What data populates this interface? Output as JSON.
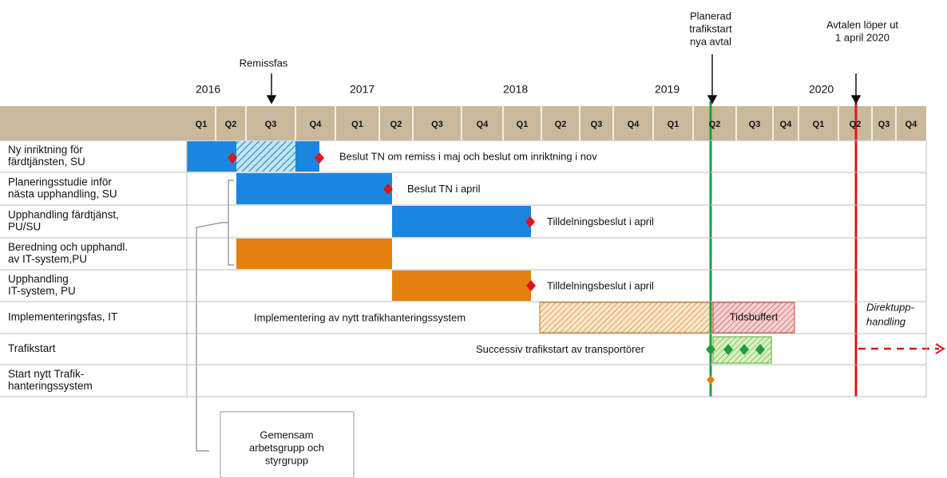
{
  "years": [
    "2016",
    "2017",
    "2018",
    "2019",
    "2020"
  ],
  "quarters": [
    "Q1",
    "Q2",
    "Q3",
    "Q4",
    "Q1",
    "Q2",
    "Q3",
    "Q4",
    "Q1",
    "Q2",
    "Q3",
    "Q4",
    "Q1",
    "Q2",
    "Q3",
    "Q4",
    "Q1",
    "Q2",
    "Q3",
    "Q4"
  ],
  "rows": [
    {
      "label": [
        "Ny inriktning för",
        "färdtjänsten,  SU"
      ],
      "note": "Beslut TN om remiss i maj och beslut om inriktning i nov"
    },
    {
      "label": [
        "Planeringsstudie inför",
        "nästa upphandling,  SU"
      ],
      "note": "Beslut TN i april"
    },
    {
      "label": [
        "Upphandling färdtjänst,",
        "PU/SU"
      ],
      "note": "Tilldelningsbeslut i april"
    },
    {
      "label": [
        "Beredning och upphandl.",
        "av IT-system,PU"
      ]
    },
    {
      "label": [
        "Upphandling",
        "IT-system,  PU"
      ],
      "note": "Tilldelningsbeslut i april"
    },
    {
      "label": [
        "Implementeringsfas,  IT"
      ],
      "note": "Implementering av nytt trafikhanteringssystem",
      "buffer": "Tidsbuffert"
    },
    {
      "label": [
        "Trafikstart"
      ],
      "note": "Successiv trafikstart av transportörer"
    },
    {
      "label": [
        "Start nytt Trafik-",
        "hanteringssystem"
      ]
    }
  ],
  "annotations": {
    "remiss": "Remissfas",
    "planerad": [
      "Planerad",
      "trafikstart",
      "nya avtal"
    ],
    "avtalen": [
      "Avtalen löper ut",
      "1 april 2020"
    ],
    "direkt": [
      "Direktupp-",
      "handling"
    ],
    "box": [
      "Gemensam",
      "arbetsgrupp och",
      "styrgrupp"
    ]
  }
}
